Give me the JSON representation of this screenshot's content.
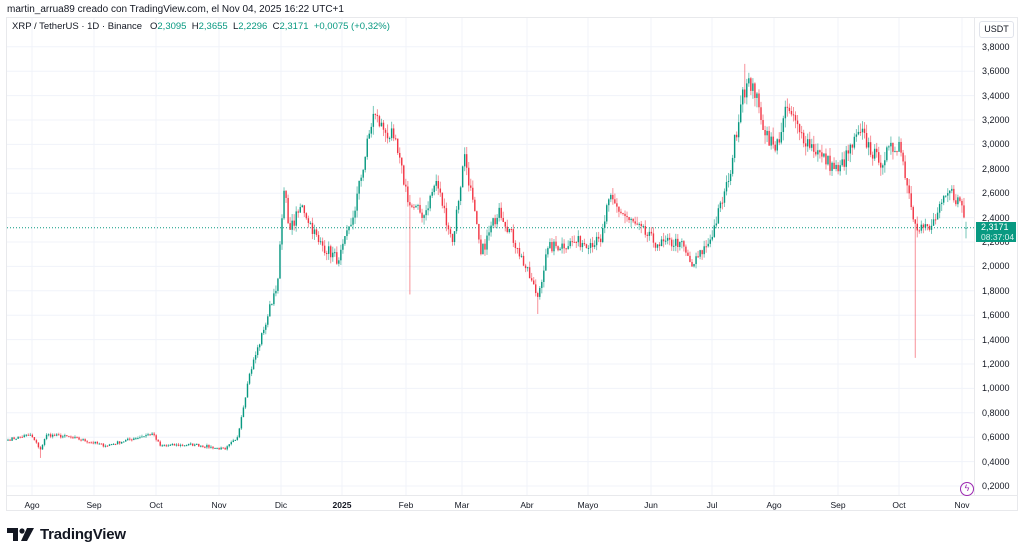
{
  "header": {
    "credit": "martin_arrua89 creado con TradingView.com, el Nov 04, 2025 16:22 UTC+1"
  },
  "legend": {
    "symbol": "XRP / TetherUS · 1D · Binance",
    "open_label": "O",
    "open": "2,3095",
    "high_label": "H",
    "high": "2,3655",
    "low_label": "L",
    "low": "2,2296",
    "close_label": "C",
    "close": "2,3171",
    "change": "+0,0075 (+0,32%)"
  },
  "price_scale": {
    "unit": "USDT",
    "current_price": "2,3171",
    "countdown": "08:37:04"
  },
  "footer": {
    "brand": "TradingView"
  },
  "colors": {
    "up": "#089981",
    "down": "#f23645",
    "grid": "#f0f3fa",
    "price_line": "#089981",
    "accent_purple": "#9c27b0"
  },
  "chart_data": {
    "type": "candlestick",
    "title": "XRP / TetherUS · 1D · Binance",
    "xlabel": "",
    "ylabel": "USDT",
    "ylim": [
      0.1,
      3.9
    ],
    "grid": true,
    "y_ticks": [
      "3,8000",
      "3,6000",
      "3,4000",
      "3,2000",
      "3,0000",
      "2,8000",
      "2,6000",
      "2,4000",
      "2,2000",
      "2,0000",
      "1,8000",
      "1,6000",
      "1,4000",
      "1,2000",
      "1,0000",
      "0,8000",
      "0,6000",
      "0,4000",
      "0,2000"
    ],
    "x_ticks": [
      "Ago",
      "Sep",
      "Oct",
      "Nov",
      "Dic",
      "2025",
      "Feb",
      "Mar",
      "Abr",
      "Mayo",
      "Jun",
      "Jul",
      "Ago",
      "Sep",
      "Oct",
      "Nov"
    ],
    "date_range": [
      "2024-07-20",
      "2025-11-04"
    ],
    "last": {
      "open": 2.3095,
      "high": 2.3655,
      "low": 2.2296,
      "close": 2.3171,
      "change": 0.0075,
      "change_pct": 0.32
    },
    "approx_close_path": [
      {
        "date": "2024-07-20",
        "close": 0.58
      },
      {
        "date": "2024-07-31",
        "close": 0.62
      },
      {
        "date": "2024-08-05",
        "close": 0.5
      },
      {
        "date": "2024-08-08",
        "close": 0.62
      },
      {
        "date": "2024-08-20",
        "close": 0.6
      },
      {
        "date": "2024-09-06",
        "close": 0.53
      },
      {
        "date": "2024-09-20",
        "close": 0.59
      },
      {
        "date": "2024-09-29",
        "close": 0.63
      },
      {
        "date": "2024-10-03",
        "close": 0.53
      },
      {
        "date": "2024-10-20",
        "close": 0.54
      },
      {
        "date": "2024-11-04",
        "close": 0.5
      },
      {
        "date": "2024-11-10",
        "close": 0.6
      },
      {
        "date": "2024-11-16",
        "close": 1.12
      },
      {
        "date": "2024-11-23",
        "close": 1.48
      },
      {
        "date": "2024-11-30",
        "close": 1.9
      },
      {
        "date": "2024-12-03",
        "close": 2.62
      },
      {
        "date": "2024-12-06",
        "close": 2.3
      },
      {
        "date": "2024-12-12",
        "close": 2.5
      },
      {
        "date": "2024-12-20",
        "close": 2.2
      },
      {
        "date": "2024-12-30",
        "close": 2.05
      },
      {
        "date": "2025-01-06",
        "close": 2.4
      },
      {
        "date": "2025-01-16",
        "close": 3.25
      },
      {
        "date": "2025-01-21",
        "close": 3.12
      },
      {
        "date": "2025-01-26",
        "close": 3.05
      },
      {
        "date": "2025-02-03",
        "close": 2.5
      },
      {
        "date": "2025-02-10",
        "close": 2.42
      },
      {
        "date": "2025-02-16",
        "close": 2.7
      },
      {
        "date": "2025-02-24",
        "close": 2.2
      },
      {
        "date": "2025-03-02",
        "close": 2.92
      },
      {
        "date": "2025-03-10",
        "close": 2.1
      },
      {
        "date": "2025-03-19",
        "close": 2.48
      },
      {
        "date": "2025-03-28",
        "close": 2.15
      },
      {
        "date": "2025-04-07",
        "close": 1.75
      },
      {
        "date": "2025-04-12",
        "close": 2.15
      },
      {
        "date": "2025-04-25",
        "close": 2.2
      },
      {
        "date": "2025-05-08",
        "close": 2.2
      },
      {
        "date": "2025-05-12",
        "close": 2.55
      },
      {
        "date": "2025-05-22",
        "close": 2.38
      },
      {
        "date": "2025-06-05",
        "close": 2.18
      },
      {
        "date": "2025-06-16",
        "close": 2.2
      },
      {
        "date": "2025-06-22",
        "close": 2.0
      },
      {
        "date": "2025-07-01",
        "close": 2.22
      },
      {
        "date": "2025-07-10",
        "close": 2.7
      },
      {
        "date": "2025-07-17",
        "close": 3.45
      },
      {
        "date": "2025-07-22",
        "close": 3.5
      },
      {
        "date": "2025-07-26",
        "close": 3.2
      },
      {
        "date": "2025-08-02",
        "close": 2.95
      },
      {
        "date": "2025-08-08",
        "close": 3.3
      },
      {
        "date": "2025-08-14",
        "close": 3.1
      },
      {
        "date": "2025-08-25",
        "close": 2.9
      },
      {
        "date": "2025-09-02",
        "close": 2.78
      },
      {
        "date": "2025-09-13",
        "close": 3.1
      },
      {
        "date": "2025-09-22",
        "close": 2.85
      },
      {
        "date": "2025-10-02",
        "close": 3.02
      },
      {
        "date": "2025-10-10",
        "close": 2.35
      },
      {
        "date": "2025-10-17",
        "close": 2.3
      },
      {
        "date": "2025-10-27",
        "close": 2.62
      },
      {
        "date": "2025-11-02",
        "close": 2.5
      },
      {
        "date": "2025-11-04",
        "close": 2.3171
      }
    ],
    "notable_wicks": [
      {
        "date": "2025-10-10",
        "low": 1.25
      },
      {
        "date": "2025-07-18",
        "high": 3.66
      },
      {
        "date": "2025-04-07",
        "low": 1.61
      },
      {
        "date": "2025-02-03",
        "low": 1.77
      },
      {
        "date": "2024-08-05",
        "low": 0.43
      }
    ]
  }
}
